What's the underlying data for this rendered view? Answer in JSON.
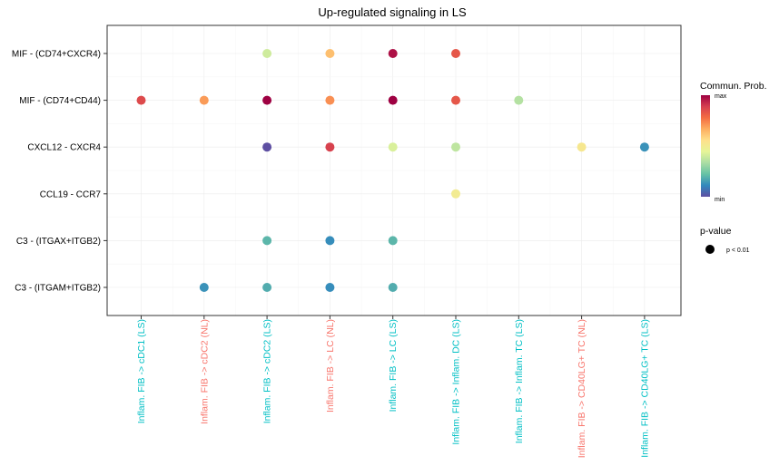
{
  "chart_data": {
    "type": "dot",
    "title": "Up-regulated signaling in LS",
    "y_categories": [
      "MIF - (CD74+CXCR4)",
      "MIF - (CD74+CD44)",
      "CXCL12 - CXCR4",
      "CCL19 - CCR7",
      "C3 - (ITGAX+ITGB2)",
      "C3 - (ITGAM+ITGB2)"
    ],
    "x_categories": [
      {
        "label": "Inflam. FIB -> cDC1 (LS)",
        "group": "LS"
      },
      {
        "label": "Inflam. FIB -> cDC2 (NL)",
        "group": "NL"
      },
      {
        "label": "Inflam. FIB -> cDC2 (LS)",
        "group": "LS"
      },
      {
        "label": "Inflam. FIB -> LC (NL)",
        "group": "NL"
      },
      {
        "label": "Inflam. FIB -> LC (LS)",
        "group": "LS"
      },
      {
        "label": "Inflam. FIB -> Inflam. DC (LS)",
        "group": "LS"
      },
      {
        "label": "Inflam. FIB -> Inflam. TC (LS)",
        "group": "LS"
      },
      {
        "label": "Inflam. FIB -> CD40LG+ TC (NL)",
        "group": "NL"
      },
      {
        "label": "Inflam. FIB -> CD40LG+ TC (LS)",
        "group": "LS"
      }
    ],
    "group_colors": {
      "LS": "#00BFC4",
      "NL": "#F8766D"
    },
    "points": [
      {
        "x": 2,
        "y": 0,
        "prob": 0.4
      },
      {
        "x": 3,
        "y": 0,
        "prob": 0.63
      },
      {
        "x": 4,
        "y": 0,
        "prob": 0.97
      },
      {
        "x": 5,
        "y": 0,
        "prob": 0.83
      },
      {
        "x": 0,
        "y": 1,
        "prob": 0.86
      },
      {
        "x": 1,
        "y": 1,
        "prob": 0.7
      },
      {
        "x": 2,
        "y": 1,
        "prob": 1.0
      },
      {
        "x": 3,
        "y": 1,
        "prob": 0.72
      },
      {
        "x": 4,
        "y": 1,
        "prob": 1.0
      },
      {
        "x": 5,
        "y": 1,
        "prob": 0.83
      },
      {
        "x": 6,
        "y": 1,
        "prob": 0.35
      },
      {
        "x": 2,
        "y": 2,
        "prob": 0.0
      },
      {
        "x": 3,
        "y": 2,
        "prob": 0.88
      },
      {
        "x": 4,
        "y": 2,
        "prob": 0.42
      },
      {
        "x": 5,
        "y": 2,
        "prob": 0.37
      },
      {
        "x": 7,
        "y": 2,
        "prob": 0.52
      },
      {
        "x": 8,
        "y": 2,
        "prob": 0.13
      },
      {
        "x": 5,
        "y": 3,
        "prob": 0.5
      },
      {
        "x": 2,
        "y": 4,
        "prob": 0.2
      },
      {
        "x": 3,
        "y": 4,
        "prob": 0.12
      },
      {
        "x": 4,
        "y": 4,
        "prob": 0.2
      },
      {
        "x": 1,
        "y": 5,
        "prob": 0.13
      },
      {
        "x": 2,
        "y": 5,
        "prob": 0.18
      },
      {
        "x": 3,
        "y": 5,
        "prob": 0.12
      },
      {
        "x": 4,
        "y": 5,
        "prob": 0.18
      }
    ],
    "color_scale": [
      "#5E4FA2",
      "#3288BD",
      "#66C2A5",
      "#ABDDA4",
      "#E6F598",
      "#FEE08B",
      "#FDAE61",
      "#F46D43",
      "#D53E4F",
      "#9E0142"
    ],
    "legend": {
      "color_title": "Commun. Prob.",
      "color_max": "max",
      "color_min": "min",
      "size_title": "p-value",
      "size_label": "p < 0.01",
      "position": "right"
    },
    "grid": true
  }
}
